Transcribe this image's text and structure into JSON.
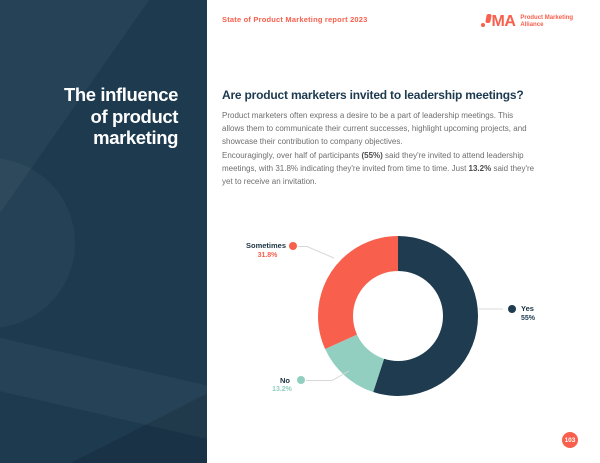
{
  "colors": {
    "navy": "#1E3B4F",
    "sidebar_navy": "#1D3A4F",
    "coral": "#F8604D",
    "teal": "#92CFC0",
    "body_text": "#6E6E6E",
    "leader_line": "#D8D8D8"
  },
  "header": {
    "report_title": "State of Product Marketing report 2023",
    "logo": {
      "abbr": "MA",
      "name_line1": "Product Marketing",
      "name_line2": "Alliance"
    }
  },
  "sidebar": {
    "title": "The influence\nof product\nmarketing"
  },
  "main": {
    "heading": "Are product marketers invited to leadership meetings?",
    "paragraph1": "Product marketers often express a desire to be a part of leadership meetings. This allows them to communicate their current successes, highlight upcoming projects, and showcase their contribution to company objectives.",
    "paragraph2": {
      "part1": "Encouragingly, over half of participants ",
      "bold1": "(55%)",
      "part2": " said they're invited to attend leadership meetings, with 31.8% indicating they're invited from time to time. Just ",
      "bold2": "13.2%",
      "part3": " said they're yet to receive an invitation."
    }
  },
  "chart_data": {
    "type": "pie",
    "variant": "donut",
    "title": "Are product marketers invited to leadership meetings?",
    "segments": [
      {
        "label": "Yes",
        "value": 55,
        "display": "55%",
        "color": "#1E3B4F"
      },
      {
        "label": "No",
        "value": 13.2,
        "display": "13.2%",
        "color": "#92CFC0"
      },
      {
        "label": "Sometimes",
        "value": 31.8,
        "display": "31.8%",
        "color": "#F8604D"
      }
    ],
    "start_angle_deg": 0,
    "direction": "clockwise",
    "inner_radius_ratio": 0.56,
    "legend_position": "callout-labels"
  },
  "footer": {
    "page_number": "103"
  }
}
